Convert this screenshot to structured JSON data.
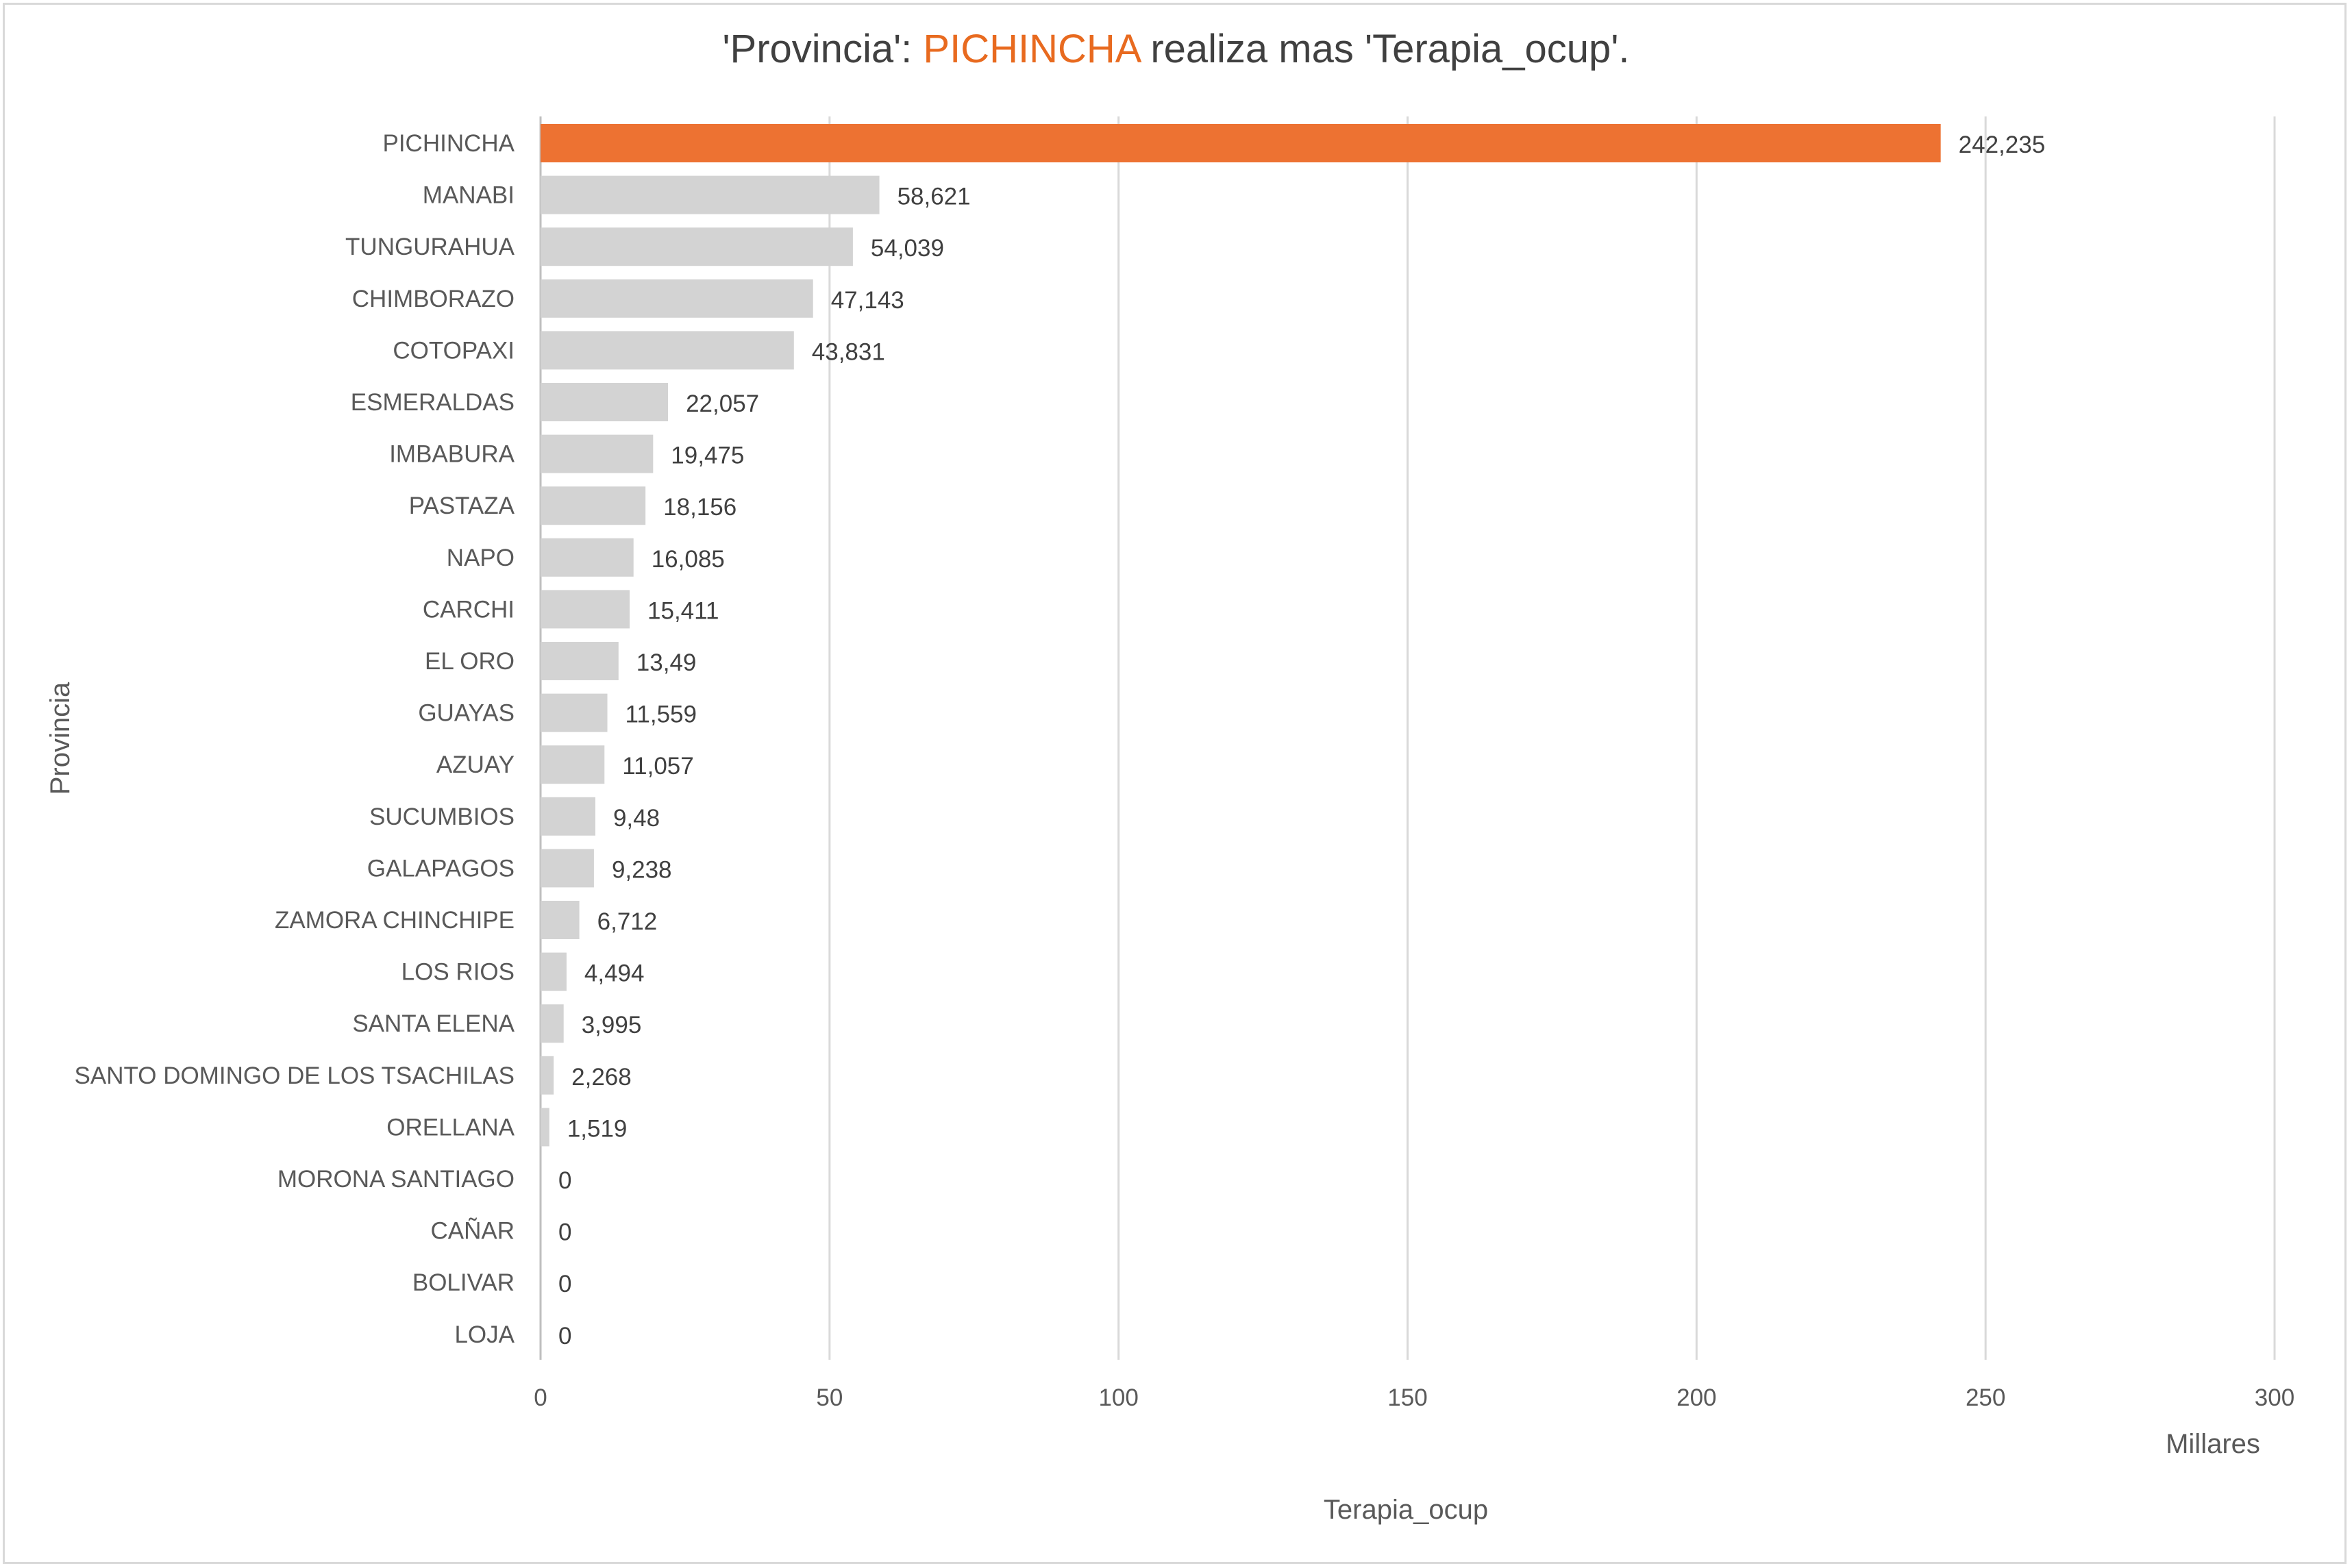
{
  "chart_data": {
    "type": "bar",
    "orientation": "horizontal",
    "title": {
      "prefix": "'Provincia': ",
      "highlight": "PICHINCHA",
      "suffix": " realiza mas 'Terapia_ocup'."
    },
    "xlabel": "Terapia_ocup",
    "ylabel": "Provincia",
    "x_unit_label": "Millares",
    "xlim": [
      0,
      300
    ],
    "xticks": [
      0,
      50,
      100,
      150,
      200,
      250,
      300
    ],
    "xtick_labels": [
      "0",
      "50",
      "100",
      "150",
      "200",
      "250",
      "300"
    ],
    "grid": "vertical",
    "colors": {
      "highlight": "#ED7232",
      "default": "#D3D3D3",
      "grid": "#D9D9D9",
      "title_highlight": "#E86A1F"
    },
    "highlight_category": "PICHINCHA",
    "categories": [
      "PICHINCHA",
      "MANABI",
      "TUNGURAHUA",
      "CHIMBORAZO",
      "COTOPAXI",
      "ESMERALDAS",
      "IMBABURA",
      "PASTAZA",
      "NAPO",
      "CARCHI",
      "EL ORO",
      "GUAYAS",
      "AZUAY",
      "SUCUMBIOS",
      "GALAPAGOS",
      "ZAMORA CHINCHIPE",
      "LOS RIOS",
      "SANTA ELENA",
      "SANTO DOMINGO DE LOS TSACHILAS",
      "ORELLANA",
      "MORONA SANTIAGO",
      "CAÑAR",
      "BOLIVAR",
      "LOJA"
    ],
    "values": [
      242.235,
      58.621,
      54.039,
      47.143,
      43.831,
      22.057,
      19.475,
      18.156,
      16.085,
      15.411,
      13.49,
      11.559,
      11.057,
      9.48,
      9.238,
      6.712,
      4.494,
      3.995,
      2.268,
      1.519,
      0,
      0,
      0,
      0
    ],
    "value_labels": [
      "242,235",
      "58,621",
      "54,039",
      "47,143",
      "43,831",
      "22,057",
      "19,475",
      "18,156",
      "16,085",
      "15,411",
      "13,49",
      "11,559",
      "11,057",
      "9,48",
      "9,238",
      "6,712",
      "4,494",
      "3,995",
      "2,268",
      "1,519",
      "0",
      "0",
      "0",
      "0"
    ]
  }
}
